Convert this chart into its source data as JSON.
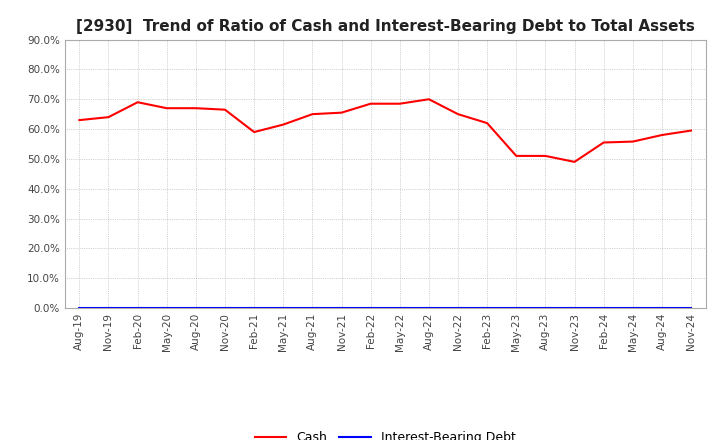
{
  "title": "[2930]  Trend of Ratio of Cash and Interest-Bearing Debt to Total Assets",
  "x_labels": [
    "Aug-19",
    "Nov-19",
    "Feb-20",
    "May-20",
    "Aug-20",
    "Nov-20",
    "Feb-21",
    "May-21",
    "Aug-21",
    "Nov-21",
    "Feb-22",
    "May-22",
    "Aug-22",
    "Nov-22",
    "Feb-23",
    "May-23",
    "Aug-23",
    "Nov-23",
    "Feb-24",
    "May-24",
    "Aug-24",
    "Nov-24"
  ],
  "cash_values": [
    0.63,
    0.64,
    0.69,
    0.67,
    0.67,
    0.665,
    0.59,
    0.615,
    0.65,
    0.655,
    0.685,
    0.685,
    0.7,
    0.65,
    0.62,
    0.51,
    0.51,
    0.49,
    0.555,
    0.558,
    0.58,
    0.595
  ],
  "debt_values": [
    0.0,
    0.0,
    0.0,
    0.0,
    0.0,
    0.0,
    0.0,
    0.0,
    0.0,
    0.0,
    0.0,
    0.0,
    0.0,
    0.0,
    0.0,
    0.0,
    0.0,
    0.0,
    0.0,
    0.0,
    0.0,
    0.0
  ],
  "cash_color": "#FF0000",
  "debt_color": "#0000FF",
  "ylim": [
    0.0,
    0.9
  ],
  "yticks": [
    0.0,
    0.1,
    0.2,
    0.3,
    0.4,
    0.5,
    0.6,
    0.7,
    0.8,
    0.9
  ],
  "background_color": "#FFFFFF",
  "grid_color": "#AAAAAA",
  "title_fontsize": 11,
  "tick_fontsize": 7.5,
  "legend_labels": [
    "Cash",
    "Interest-Bearing Debt"
  ],
  "legend_fontsize": 9
}
